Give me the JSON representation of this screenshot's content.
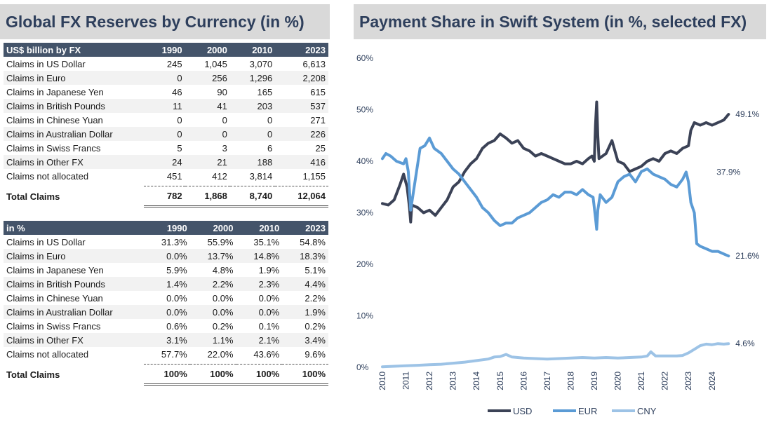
{
  "left_title": "Global FX Reserves by Currency (in %)",
  "right_title": "Payment Share in Swift System (in %, selected FX)",
  "table_billion": {
    "headers": [
      "US$ billion by FX",
      "1990",
      "2000",
      "2010",
      "2023"
    ],
    "rows": [
      [
        "Claims in US Dollar",
        "245",
        "1,045",
        "3,070",
        "6,613"
      ],
      [
        "Claims in Euro",
        "0",
        "256",
        "1,296",
        "2,208"
      ],
      [
        "Claims in Japanese Yen",
        "46",
        "90",
        "165",
        "615"
      ],
      [
        "Claims in British Pounds",
        "11",
        "41",
        "203",
        "537"
      ],
      [
        "Claims in Chinese Yuan",
        "0",
        "0",
        "0",
        "271"
      ],
      [
        "Claims in Australian Dollar",
        "0",
        "0",
        "0",
        "226"
      ],
      [
        "Claims in Swiss Francs",
        "5",
        "3",
        "6",
        "25"
      ],
      [
        "Claims in Other FX",
        "24",
        "21",
        "188",
        "416"
      ],
      [
        "Claims not allocated",
        "451",
        "412",
        "3,814",
        "1,155"
      ]
    ],
    "total": [
      "Total Claims",
      "782",
      "1,868",
      "8,740",
      "12,064"
    ]
  },
  "table_pct": {
    "headers": [
      "in %",
      "1990",
      "2000",
      "2010",
      "2023"
    ],
    "rows": [
      [
        "Claims in US Dollar",
        "31.3%",
        "55.9%",
        "35.1%",
        "54.8%"
      ],
      [
        "Claims in Euro",
        "0.0%",
        "13.7%",
        "14.8%",
        "18.3%"
      ],
      [
        "Claims in Japanese Yen",
        "5.9%",
        "4.8%",
        "1.9%",
        "5.1%"
      ],
      [
        "Claims in British Pounds",
        "1.4%",
        "2.2%",
        "2.3%",
        "4.4%"
      ],
      [
        "Claims in Chinese Yuan",
        "0.0%",
        "0.0%",
        "0.0%",
        "2.2%"
      ],
      [
        "Claims in Australian Dollar",
        "0.0%",
        "0.0%",
        "0.0%",
        "1.9%"
      ],
      [
        "Claims in Swiss Francs",
        "0.6%",
        "0.2%",
        "0.1%",
        "0.2%"
      ],
      [
        "Claims in Other FX",
        "3.1%",
        "1.1%",
        "2.1%",
        "3.4%"
      ],
      [
        "Claims not allocated",
        "57.7%",
        "22.0%",
        "43.6%",
        "9.6%"
      ]
    ],
    "total": [
      "Total Claims",
      "100%",
      "100%",
      "100%",
      "100%"
    ]
  },
  "chart_data": {
    "type": "line",
    "title": "Payment Share in Swift System (in %, selected FX)",
    "ylim": [
      0,
      60
    ],
    "xlim": [
      2010,
      2024.9
    ],
    "y_ticks": [
      0,
      10,
      20,
      30,
      40,
      50,
      60
    ],
    "y_tick_labels": [
      "0%",
      "10%",
      "20%",
      "30%",
      "40%",
      "50%",
      "60%"
    ],
    "x_ticks": [
      2010,
      2011,
      2012,
      2013,
      2014,
      2015,
      2016,
      2017,
      2018,
      2019,
      2020,
      2021,
      2022,
      2023,
      2024
    ],
    "grid": false,
    "legend_position": "bottom",
    "colors": {
      "USD": "#3b4256",
      "EUR": "#5b9bd5",
      "CNY": "#9dc3e6"
    },
    "series": [
      {
        "name": "USD",
        "points": [
          [
            2010.0,
            31.8
          ],
          [
            2010.25,
            31.5
          ],
          [
            2010.5,
            32.5
          ],
          [
            2010.75,
            35.5
          ],
          [
            2010.9,
            37.5
          ],
          [
            2011.05,
            35.0
          ],
          [
            2011.15,
            31.0
          ],
          [
            2011.2,
            28.2
          ],
          [
            2011.25,
            31.5
          ],
          [
            2011.5,
            31.0
          ],
          [
            2011.75,
            30.0
          ],
          [
            2012.0,
            30.5
          ],
          [
            2012.25,
            29.5
          ],
          [
            2012.5,
            31.0
          ],
          [
            2012.75,
            32.5
          ],
          [
            2013.0,
            35.0
          ],
          [
            2013.25,
            36.0
          ],
          [
            2013.5,
            38.0
          ],
          [
            2013.75,
            39.5
          ],
          [
            2014.0,
            40.5
          ],
          [
            2014.25,
            42.5
          ],
          [
            2014.5,
            43.5
          ],
          [
            2014.75,
            44.0
          ],
          [
            2015.0,
            45.3
          ],
          [
            2015.25,
            44.5
          ],
          [
            2015.5,
            43.5
          ],
          [
            2015.75,
            44.0
          ],
          [
            2016.0,
            42.5
          ],
          [
            2016.25,
            42.0
          ],
          [
            2016.5,
            41.0
          ],
          [
            2016.75,
            41.5
          ],
          [
            2017.0,
            41.0
          ],
          [
            2017.25,
            40.5
          ],
          [
            2017.5,
            40.0
          ],
          [
            2017.75,
            39.5
          ],
          [
            2018.0,
            39.5
          ],
          [
            2018.25,
            40.0
          ],
          [
            2018.5,
            39.5
          ],
          [
            2018.75,
            40.5
          ],
          [
            2018.9,
            41.0
          ],
          [
            2019.0,
            40.0
          ],
          [
            2019.05,
            47.0
          ],
          [
            2019.1,
            51.5
          ],
          [
            2019.15,
            45.0
          ],
          [
            2019.2,
            40.5
          ],
          [
            2019.5,
            41.5
          ],
          [
            2019.75,
            44.0
          ],
          [
            2020.0,
            40.0
          ],
          [
            2020.25,
            39.5
          ],
          [
            2020.5,
            38.0
          ],
          [
            2020.75,
            38.5
          ],
          [
            2021.0,
            39.0
          ],
          [
            2021.25,
            40.0
          ],
          [
            2021.5,
            40.5
          ],
          [
            2021.75,
            40.0
          ],
          [
            2022.0,
            41.5
          ],
          [
            2022.25,
            42.0
          ],
          [
            2022.5,
            41.5
          ],
          [
            2022.75,
            42.5
          ],
          [
            2023.0,
            43.0
          ],
          [
            2023.1,
            46.0
          ],
          [
            2023.25,
            47.5
          ],
          [
            2023.5,
            47.0
          ],
          [
            2023.75,
            47.5
          ],
          [
            2024.0,
            47.0
          ],
          [
            2024.25,
            47.5
          ],
          [
            2024.5,
            48.0
          ],
          [
            2024.7,
            49.1
          ]
        ],
        "end_label": "49.1%"
      },
      {
        "name": "EUR",
        "points": [
          [
            2010.0,
            40.5
          ],
          [
            2010.15,
            41.5
          ],
          [
            2010.35,
            41.0
          ],
          [
            2010.6,
            40.0
          ],
          [
            2010.9,
            39.5
          ],
          [
            2011.0,
            40.5
          ],
          [
            2011.1,
            38.0
          ],
          [
            2011.2,
            30.5
          ],
          [
            2011.35,
            35.0
          ],
          [
            2011.6,
            42.5
          ],
          [
            2011.8,
            43.0
          ],
          [
            2012.0,
            44.5
          ],
          [
            2012.2,
            42.5
          ],
          [
            2012.5,
            41.5
          ],
          [
            2012.75,
            40.0
          ],
          [
            2013.0,
            38.5
          ],
          [
            2013.25,
            37.5
          ],
          [
            2013.5,
            36.0
          ],
          [
            2013.75,
            34.5
          ],
          [
            2014.0,
            33.0
          ],
          [
            2014.25,
            31.0
          ],
          [
            2014.5,
            30.0
          ],
          [
            2014.75,
            28.5
          ],
          [
            2015.0,
            27.5
          ],
          [
            2015.25,
            28.0
          ],
          [
            2015.5,
            28.0
          ],
          [
            2015.75,
            29.0
          ],
          [
            2016.0,
            29.5
          ],
          [
            2016.25,
            30.0
          ],
          [
            2016.5,
            31.0
          ],
          [
            2016.75,
            32.0
          ],
          [
            2017.0,
            32.5
          ],
          [
            2017.25,
            33.5
          ],
          [
            2017.5,
            33.0
          ],
          [
            2017.75,
            34.0
          ],
          [
            2018.0,
            34.0
          ],
          [
            2018.25,
            33.5
          ],
          [
            2018.5,
            34.5
          ],
          [
            2018.75,
            33.5
          ],
          [
            2018.95,
            33.0
          ],
          [
            2019.05,
            29.0
          ],
          [
            2019.1,
            26.8
          ],
          [
            2019.15,
            30.5
          ],
          [
            2019.25,
            33.5
          ],
          [
            2019.5,
            32.0
          ],
          [
            2019.75,
            33.0
          ],
          [
            2020.0,
            36.0
          ],
          [
            2020.25,
            37.0
          ],
          [
            2020.5,
            37.5
          ],
          [
            2020.75,
            36.0
          ],
          [
            2021.0,
            38.0
          ],
          [
            2021.25,
            38.5
          ],
          [
            2021.5,
            37.5
          ],
          [
            2021.75,
            37.0
          ],
          [
            2022.0,
            36.5
          ],
          [
            2022.25,
            35.5
          ],
          [
            2022.5,
            35.0
          ],
          [
            2022.75,
            36.5
          ],
          [
            2022.9,
            37.9
          ],
          [
            2023.0,
            36.0
          ],
          [
            2023.1,
            32.0
          ],
          [
            2023.25,
            30.0
          ],
          [
            2023.35,
            24.0
          ],
          [
            2023.5,
            23.5
          ],
          [
            2023.75,
            23.0
          ],
          [
            2024.0,
            22.5
          ],
          [
            2024.25,
            22.5
          ],
          [
            2024.5,
            22.0
          ],
          [
            2024.7,
            21.6
          ]
        ],
        "end_label": "21.6%",
        "mid_label": {
          "x": 2023.0,
          "y": 37.9,
          "text": "37.9%"
        }
      },
      {
        "name": "CNY",
        "points": [
          [
            2010.0,
            0.1
          ],
          [
            2010.5,
            0.2
          ],
          [
            2011.0,
            0.3
          ],
          [
            2011.5,
            0.4
          ],
          [
            2012.0,
            0.5
          ],
          [
            2012.5,
            0.6
          ],
          [
            2013.0,
            0.8
          ],
          [
            2013.5,
            1.0
          ],
          [
            2014.0,
            1.3
          ],
          [
            2014.5,
            1.6
          ],
          [
            2014.75,
            2.0
          ],
          [
            2015.0,
            2.1
          ],
          [
            2015.25,
            2.5
          ],
          [
            2015.5,
            2.0
          ],
          [
            2016.0,
            1.8
          ],
          [
            2016.5,
            1.7
          ],
          [
            2017.0,
            1.6
          ],
          [
            2017.5,
            1.7
          ],
          [
            2018.0,
            1.8
          ],
          [
            2018.5,
            1.9
          ],
          [
            2019.0,
            1.8
          ],
          [
            2019.5,
            1.9
          ],
          [
            2020.0,
            1.8
          ],
          [
            2020.5,
            1.9
          ],
          [
            2021.0,
            2.0
          ],
          [
            2021.25,
            2.2
          ],
          [
            2021.4,
            3.0
          ],
          [
            2021.6,
            2.2
          ],
          [
            2022.0,
            2.2
          ],
          [
            2022.5,
            2.2
          ],
          [
            2022.75,
            2.3
          ],
          [
            2023.0,
            2.8
          ],
          [
            2023.25,
            3.5
          ],
          [
            2023.5,
            4.2
          ],
          [
            2023.75,
            4.5
          ],
          [
            2024.0,
            4.4
          ],
          [
            2024.25,
            4.6
          ],
          [
            2024.5,
            4.5
          ],
          [
            2024.7,
            4.6
          ]
        ],
        "end_label": "4.6%"
      }
    ]
  }
}
